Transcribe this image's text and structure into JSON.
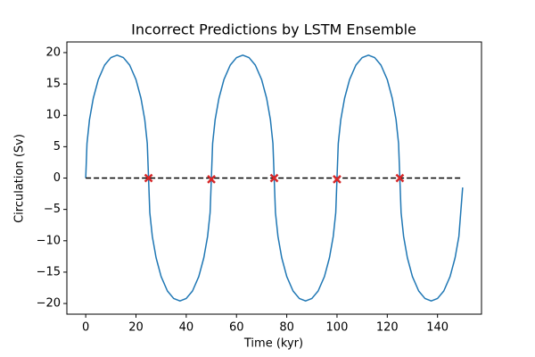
{
  "chart_data": {
    "type": "line",
    "title": "Incorrect Predictions by LSTM Ensemble",
    "x_label": "Time (kyr)",
    "y_label": "Circulation (Sv)",
    "xlim": [
      -7.5,
      157.5
    ],
    "ylim": [
      -21.7,
      21.7
    ],
    "xticks": [
      0,
      20,
      40,
      60,
      80,
      100,
      120,
      140
    ],
    "yticks": [
      {
        "value": -20,
        "label": "−20"
      },
      {
        "value": -15,
        "label": "−15"
      },
      {
        "value": -10,
        "label": "−10"
      },
      {
        "value": -5,
        "label": "−5"
      },
      0,
      5,
      10,
      15,
      20
    ],
    "series": [
      {
        "color": "#1f77b4",
        "style": "solid",
        "x": [
          0,
          0.5,
          1.5,
          3,
          5,
          7.5,
          10,
          12.5,
          15,
          17.5,
          20,
          22,
          23.5,
          24.5,
          25,
          25.5,
          26.5,
          28,
          30,
          32.5,
          35,
          37.5,
          40,
          42.5,
          45,
          47,
          48.5,
          49.5,
          50,
          50.5,
          51.5,
          53,
          55,
          57.5,
          60,
          62.5,
          65,
          67.5,
          70,
          72,
          73.5,
          74.5,
          75,
          75.5,
          76.5,
          78,
          80,
          82.5,
          85,
          87.5,
          90,
          92.5,
          95,
          97,
          98.5,
          99.5,
          100,
          100.5,
          101.5,
          103,
          105,
          107.5,
          110,
          112.5,
          115,
          117.5,
          120,
          122,
          123.5,
          124.5,
          125,
          125.5,
          126.5,
          128,
          130,
          132.5,
          135,
          137.5,
          140,
          142.5,
          145,
          147,
          148.5,
          150
        ],
        "values": [
          0,
          5.5,
          9.3,
          12.7,
          15.7,
          18.0,
          19.2,
          19.6,
          19.2,
          18.0,
          15.7,
          12.7,
          9.3,
          5.5,
          0,
          -5.5,
          -9.3,
          -12.7,
          -15.7,
          -18.0,
          -19.2,
          -19.6,
          -19.2,
          -18.0,
          -15.7,
          -12.7,
          -9.3,
          -5.5,
          0,
          5.5,
          9.3,
          12.7,
          15.7,
          18.0,
          19.2,
          19.6,
          19.2,
          18.0,
          15.7,
          12.7,
          9.3,
          5.5,
          0,
          -5.5,
          -9.3,
          -12.7,
          -15.7,
          -18.0,
          -19.2,
          -19.6,
          -19.2,
          -18.0,
          -15.7,
          -12.7,
          -9.3,
          -5.5,
          0,
          5.5,
          9.3,
          12.7,
          15.7,
          18.0,
          19.2,
          19.6,
          19.2,
          18.0,
          15.7,
          12.7,
          9.3,
          5.5,
          0,
          -5.5,
          -9.3,
          -12.7,
          -15.7,
          -18.0,
          -19.2,
          -19.6,
          -19.2,
          -18.0,
          -15.7,
          -12.7,
          -9.3,
          -1.5
        ]
      },
      {
        "color": "#000000",
        "style": "dashed",
        "x": [
          0,
          150
        ],
        "values": [
          0,
          0
        ]
      },
      {
        "color": "#d62728",
        "style": "x-marker",
        "x": [
          25,
          50,
          75,
          100,
          125
        ],
        "values": [
          0,
          -0.2,
          0,
          -0.2,
          0
        ]
      }
    ]
  }
}
